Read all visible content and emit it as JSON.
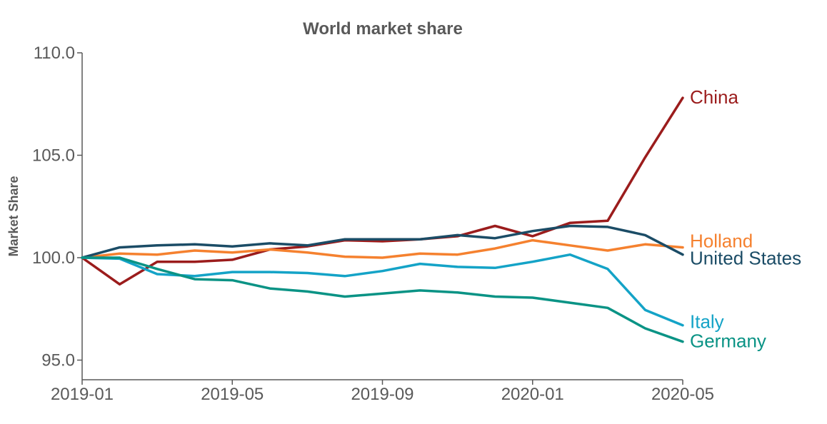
{
  "chart_data": {
    "type": "line",
    "title": "World market share",
    "xlabel": "",
    "ylabel": "Market Share",
    "x": [
      "2019-01",
      "2019-02",
      "2019-03",
      "2019-04",
      "2019-05",
      "2019-06",
      "2019-07",
      "2019-08",
      "2019-09",
      "2019-10",
      "2019-11",
      "2019-12",
      "2020-01",
      "2020-02",
      "2020-03",
      "2020-04",
      "2020-05"
    ],
    "xticks": [
      "2019-01",
      "2019-05",
      "2019-09",
      "2020-01",
      "2020-05"
    ],
    "yticks": [
      "95.0",
      "100.0",
      "105.0",
      "110.0"
    ],
    "ylim": [
      94.0,
      110.0
    ],
    "grid": false,
    "legend": "direct labels at line ends",
    "series": [
      {
        "name": "China",
        "color": "#9b1c1c",
        "values": [
          100.0,
          98.7,
          99.8,
          99.8,
          99.9,
          100.4,
          100.55,
          100.85,
          100.8,
          100.9,
          101.05,
          101.55,
          101.05,
          101.7,
          101.8,
          104.9,
          107.8
        ]
      },
      {
        "name": "Holland",
        "color": "#f5812f",
        "values": [
          100.0,
          100.2,
          100.15,
          100.35,
          100.25,
          100.4,
          100.25,
          100.05,
          100.0,
          100.2,
          100.15,
          100.45,
          100.85,
          100.6,
          100.35,
          100.65,
          100.5
        ]
      },
      {
        "name": "United States",
        "color": "#1b4c66",
        "values": [
          100.0,
          100.5,
          100.6,
          100.65,
          100.55,
          100.7,
          100.6,
          100.9,
          100.9,
          100.9,
          101.1,
          100.95,
          101.3,
          101.55,
          101.5,
          101.1,
          100.15
        ]
      },
      {
        "name": "Italy",
        "color": "#14a3c7",
        "values": [
          100.0,
          99.95,
          99.2,
          99.1,
          99.3,
          99.3,
          99.25,
          99.1,
          99.35,
          99.7,
          99.55,
          99.5,
          99.8,
          100.15,
          99.45,
          97.45,
          96.7
        ]
      },
      {
        "name": "Germany",
        "color": "#0a9385",
        "values": [
          100.0,
          100.0,
          99.45,
          98.95,
          98.9,
          98.5,
          98.35,
          98.1,
          98.25,
          98.4,
          98.3,
          98.1,
          98.05,
          97.8,
          97.55,
          96.55,
          95.9
        ]
      }
    ]
  }
}
